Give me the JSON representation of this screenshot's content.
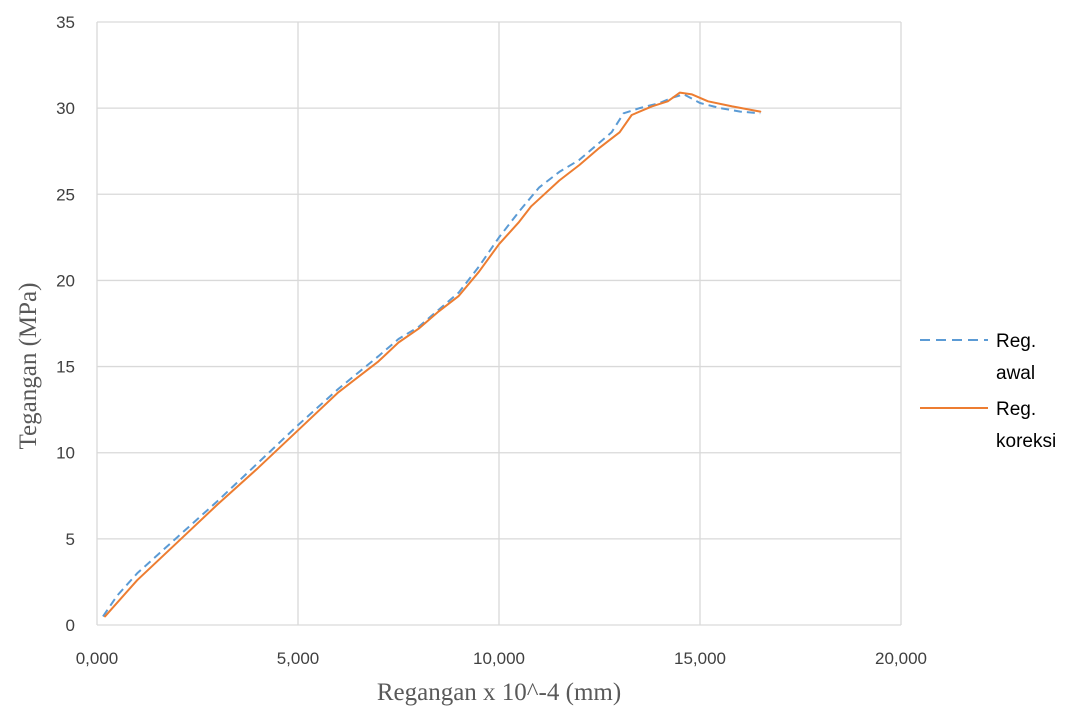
{
  "chart_data": {
    "type": "line",
    "xlabel": "Regangan  x 10^-4 (mm)",
    "ylabel": "Tegangan (MPa)",
    "xlim": [
      0,
      20000
    ],
    "ylim": [
      0,
      35
    ],
    "x_ticks": [
      0,
      5000,
      10000,
      15000,
      20000
    ],
    "x_tick_labels": [
      "0,000",
      "5,000",
      "10,000",
      "15,000",
      "20,000"
    ],
    "y_ticks": [
      0,
      5,
      10,
      15,
      20,
      25,
      30,
      35
    ],
    "y_tick_labels": [
      "0",
      "5",
      "10",
      "15",
      "20",
      "25",
      "30",
      "35"
    ],
    "grid": true,
    "legend_position": "right",
    "series": [
      {
        "name": "Reg. awal",
        "name_lines": [
          "Reg.",
          "awal"
        ],
        "color": "#5B9BD5",
        "dash": "dashed",
        "points": [
          [
            150,
            0.5
          ],
          [
            500,
            1.7
          ],
          [
            1000,
            3.0
          ],
          [
            2000,
            5.1
          ],
          [
            3000,
            7.2
          ],
          [
            4000,
            9.4
          ],
          [
            5000,
            11.6
          ],
          [
            6000,
            13.7
          ],
          [
            7000,
            15.6
          ],
          [
            7500,
            16.6
          ],
          [
            8000,
            17.3
          ],
          [
            8500,
            18.3
          ],
          [
            9000,
            19.3
          ],
          [
            9500,
            20.8
          ],
          [
            10000,
            22.5
          ],
          [
            10500,
            24.0
          ],
          [
            11000,
            25.4
          ],
          [
            11500,
            26.3
          ],
          [
            12000,
            27.0
          ],
          [
            12500,
            28.0
          ],
          [
            12800,
            28.6
          ],
          [
            13100,
            29.7
          ],
          [
            13500,
            30.0
          ],
          [
            14000,
            30.3
          ],
          [
            14300,
            30.6
          ],
          [
            14600,
            30.8
          ],
          [
            15000,
            30.3
          ],
          [
            15500,
            30.0
          ],
          [
            16000,
            29.8
          ],
          [
            16500,
            29.7
          ]
        ]
      },
      {
        "name": "Reg. koreksi",
        "name_lines": [
          "Reg.",
          "koreksi"
        ],
        "color": "#ED7D31",
        "dash": "solid",
        "points": [
          [
            200,
            0.5
          ],
          [
            1000,
            2.6
          ],
          [
            2000,
            4.8
          ],
          [
            3000,
            7.0
          ],
          [
            4000,
            9.1
          ],
          [
            5000,
            11.3
          ],
          [
            6000,
            13.5
          ],
          [
            7000,
            15.3
          ],
          [
            7500,
            16.4
          ],
          [
            8000,
            17.2
          ],
          [
            8500,
            18.2
          ],
          [
            9000,
            19.1
          ],
          [
            9500,
            20.5
          ],
          [
            10000,
            22.1
          ],
          [
            10500,
            23.4
          ],
          [
            10800,
            24.3
          ],
          [
            11500,
            25.8
          ],
          [
            12000,
            26.7
          ],
          [
            12500,
            27.7
          ],
          [
            13000,
            28.6
          ],
          [
            13300,
            29.6
          ],
          [
            13800,
            30.1
          ],
          [
            14200,
            30.4
          ],
          [
            14500,
            30.9
          ],
          [
            14800,
            30.8
          ],
          [
            15200,
            30.4
          ],
          [
            15800,
            30.1
          ],
          [
            16500,
            29.8
          ]
        ]
      }
    ]
  }
}
